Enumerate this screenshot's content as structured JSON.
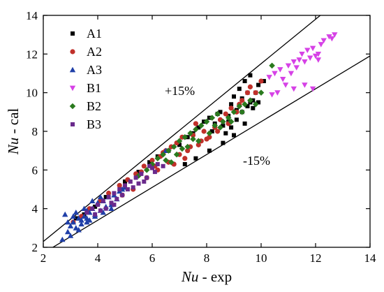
{
  "chart_data": {
    "type": "scatter",
    "title": "",
    "xlabel_italic": "Nu",
    "xlabel_rest": " - exp",
    "ylabel_italic": "Nu",
    "ylabel_rest": " - cal",
    "xlim": [
      2,
      14
    ],
    "ylim": [
      2,
      14
    ],
    "xticks": [
      2,
      4,
      6,
      8,
      10,
      12,
      14
    ],
    "yticks": [
      2,
      4,
      6,
      8,
      10,
      12,
      14
    ],
    "grid": false,
    "legend_position": "top-left",
    "reference_lines": [
      {
        "label": "+15%",
        "slope": 1.15
      },
      {
        "label": "-15%",
        "slope": 0.85
      }
    ],
    "series": [
      {
        "name": "A1",
        "marker": "square",
        "color": "#000000",
        "points": [
          [
            3.2,
            3.5
          ],
          [
            3.5,
            3.7
          ],
          [
            3.9,
            4.1
          ],
          [
            4.3,
            4.6
          ],
          [
            5.0,
            5.4
          ],
          [
            5.5,
            5.9
          ],
          [
            5.9,
            6.4
          ],
          [
            6.2,
            6.7
          ],
          [
            6.6,
            7.0
          ],
          [
            7.0,
            7.3
          ],
          [
            7.3,
            7.7
          ],
          [
            7.5,
            7.9
          ],
          [
            7.7,
            8.2
          ],
          [
            7.9,
            8.5
          ],
          [
            8.1,
            8.7
          ],
          [
            8.3,
            8.4
          ],
          [
            8.5,
            9.0
          ],
          [
            8.6,
            8.3
          ],
          [
            8.7,
            7.9
          ],
          [
            8.8,
            8.8
          ],
          [
            8.9,
            9.4
          ],
          [
            9.0,
            9.8
          ],
          [
            9.1,
            8.6
          ],
          [
            9.2,
            10.2
          ],
          [
            9.3,
            9.0
          ],
          [
            9.4,
            10.6
          ],
          [
            9.5,
            9.3
          ],
          [
            9.6,
            10.9
          ],
          [
            9.7,
            9.6
          ],
          [
            9.8,
            10.0
          ],
          [
            9.9,
            10.4
          ],
          [
            9.7,
            9.2
          ],
          [
            9.4,
            8.4
          ],
          [
            9.0,
            7.8
          ],
          [
            8.6,
            7.4
          ],
          [
            8.1,
            7.0
          ],
          [
            7.6,
            6.6
          ],
          [
            7.2,
            6.3
          ],
          [
            8.4,
            8.9
          ],
          [
            8.2,
            8.0
          ],
          [
            9.3,
            9.7
          ],
          [
            9.5,
            10.0
          ],
          [
            8.8,
            8.5
          ],
          [
            9.1,
            9.1
          ],
          [
            9.9,
            9.5
          ],
          [
            10.1,
            10.6
          ],
          [
            9.6,
            9.5
          ],
          [
            8.9,
            8.2
          ]
        ]
      },
      {
        "name": "A2",
        "marker": "circle",
        "color": "#c0302a",
        "points": [
          [
            3.1,
            3.3
          ],
          [
            3.4,
            3.6
          ],
          [
            3.7,
            4.0
          ],
          [
            4.1,
            4.4
          ],
          [
            4.4,
            4.8
          ],
          [
            4.8,
            5.2
          ],
          [
            5.1,
            5.5
          ],
          [
            5.4,
            5.8
          ],
          [
            5.7,
            6.2
          ],
          [
            6.0,
            6.5
          ],
          [
            6.3,
            6.7
          ],
          [
            6.5,
            7.0
          ],
          [
            6.7,
            7.2
          ],
          [
            6.9,
            7.4
          ],
          [
            7.1,
            7.7
          ],
          [
            7.3,
            7.0
          ],
          [
            7.5,
            7.8
          ],
          [
            7.7,
            7.3
          ],
          [
            7.9,
            8.0
          ],
          [
            8.1,
            7.7
          ],
          [
            8.3,
            8.2
          ],
          [
            8.5,
            8.6
          ],
          [
            8.7,
            8.9
          ],
          [
            8.9,
            9.2
          ],
          [
            9.1,
            9.0
          ],
          [
            9.3,
            9.6
          ],
          [
            9.5,
            10.0
          ],
          [
            9.6,
            10.3
          ],
          [
            9.8,
            10.0
          ],
          [
            10.0,
            10.6
          ],
          [
            7.0,
            6.8
          ],
          [
            6.6,
            6.4
          ],
          [
            6.2,
            6.0
          ],
          [
            5.8,
            5.6
          ],
          [
            5.3,
            5.0
          ],
          [
            4.9,
            4.7
          ],
          [
            7.4,
            7.2
          ],
          [
            8.0,
            7.6
          ],
          [
            7.6,
            8.4
          ],
          [
            7.2,
            6.6
          ],
          [
            6.8,
            6.3
          ],
          [
            8.4,
            8.0
          ],
          [
            8.8,
            8.4
          ],
          [
            7.8,
            7.5
          ],
          [
            6.4,
            6.9
          ],
          [
            6.1,
            6.2
          ],
          [
            5.6,
            5.9
          ],
          [
            9.2,
            9.4
          ]
        ]
      },
      {
        "name": "A3",
        "marker": "triangle-up",
        "color": "#1f3fa8",
        "points": [
          [
            2.7,
            2.4
          ],
          [
            2.8,
            3.7
          ],
          [
            2.9,
            2.8
          ],
          [
            3.0,
            3.1
          ],
          [
            3.1,
            3.3
          ],
          [
            3.2,
            3.0
          ],
          [
            3.3,
            3.5
          ],
          [
            3.4,
            3.2
          ],
          [
            3.5,
            3.6
          ],
          [
            3.6,
            3.9
          ],
          [
            3.7,
            3.4
          ],
          [
            3.8,
            4.0
          ],
          [
            3.9,
            3.7
          ],
          [
            4.0,
            4.3
          ],
          [
            4.1,
            3.9
          ],
          [
            4.2,
            4.4
          ],
          [
            4.3,
            4.1
          ],
          [
            4.4,
            4.6
          ],
          [
            4.5,
            4.2
          ],
          [
            4.6,
            4.7
          ],
          [
            4.8,
            4.9
          ],
          [
            5.0,
            5.1
          ],
          [
            3.3,
            2.9
          ],
          [
            3.6,
            3.3
          ],
          [
            3.9,
            3.6
          ],
          [
            4.2,
            3.8
          ],
          [
            4.5,
            4.0
          ],
          [
            3.2,
            3.8
          ],
          [
            3.5,
            4.0
          ],
          [
            3.8,
            4.4
          ],
          [
            4.1,
            4.6
          ],
          [
            2.9,
            3.3
          ],
          [
            3.0,
            2.6
          ],
          [
            3.4,
            3.4
          ],
          [
            3.7,
            3.8
          ],
          [
            6.5,
            7.0
          ],
          [
            4.7,
            4.5
          ],
          [
            4.9,
            5.0
          ],
          [
            3.1,
            3.6
          ],
          [
            3.6,
            3.5
          ]
        ]
      },
      {
        "name": "B1",
        "marker": "triangle-down",
        "color": "#d642e6",
        "points": [
          [
            10.3,
            10.8
          ],
          [
            10.5,
            11.0
          ],
          [
            10.7,
            11.2
          ],
          [
            10.8,
            10.7
          ],
          [
            10.9,
            10.4
          ],
          [
            11.0,
            11.4
          ],
          [
            11.1,
            11.0
          ],
          [
            11.2,
            11.6
          ],
          [
            11.3,
            11.3
          ],
          [
            11.4,
            11.7
          ],
          [
            11.5,
            12.0
          ],
          [
            11.6,
            11.6
          ],
          [
            11.7,
            12.2
          ],
          [
            11.8,
            11.8
          ],
          [
            11.9,
            12.3
          ],
          [
            12.0,
            11.9
          ],
          [
            12.1,
            12.0
          ],
          [
            12.2,
            12.5
          ],
          [
            12.3,
            12.7
          ],
          [
            12.5,
            12.9
          ],
          [
            12.7,
            13.0
          ],
          [
            12.6,
            12.8
          ],
          [
            11.2,
            10.2
          ],
          [
            11.6,
            10.4
          ],
          [
            11.9,
            10.2
          ],
          [
            12.1,
            11.7
          ],
          [
            10.6,
            10.0
          ],
          [
            10.4,
            9.9
          ]
        ]
      },
      {
        "name": "B2",
        "marker": "diamond",
        "color": "#2a7a1e",
        "points": [
          [
            5.5,
            5.7
          ],
          [
            5.8,
            6.0
          ],
          [
            6.0,
            6.3
          ],
          [
            6.2,
            6.6
          ],
          [
            6.4,
            6.8
          ],
          [
            6.6,
            7.0
          ],
          [
            6.8,
            7.2
          ],
          [
            7.0,
            7.5
          ],
          [
            7.2,
            7.7
          ],
          [
            7.4,
            7.9
          ],
          [
            7.6,
            8.1
          ],
          [
            7.8,
            8.3
          ],
          [
            8.0,
            8.5
          ],
          [
            8.2,
            8.7
          ],
          [
            8.4,
            8.9
          ],
          [
            8.6,
            8.5
          ],
          [
            8.8,
            8.7
          ],
          [
            9.0,
            9.0
          ],
          [
            9.2,
            9.3
          ],
          [
            9.4,
            9.4
          ],
          [
            9.6,
            9.6
          ],
          [
            9.8,
            9.4
          ],
          [
            10.0,
            10.0
          ],
          [
            10.4,
            11.4
          ],
          [
            6.5,
            6.5
          ],
          [
            6.9,
            6.8
          ],
          [
            7.3,
            7.2
          ],
          [
            7.7,
            7.5
          ],
          [
            8.1,
            7.9
          ],
          [
            8.5,
            8.2
          ],
          [
            8.9,
            8.5
          ],
          [
            9.3,
            9.0
          ],
          [
            7.5,
            7.6
          ],
          [
            7.1,
            7.1
          ],
          [
            6.7,
            6.4
          ],
          [
            8.3,
            8.3
          ]
        ]
      },
      {
        "name": "B3",
        "marker": "square",
        "color": "#6a2a8c",
        "points": [
          [
            3.6,
            3.8
          ],
          [
            3.8,
            4.0
          ],
          [
            4.0,
            4.2
          ],
          [
            4.2,
            4.4
          ],
          [
            4.4,
            4.6
          ],
          [
            4.6,
            4.8
          ],
          [
            4.8,
            5.0
          ],
          [
            5.0,
            5.2
          ],
          [
            5.2,
            5.4
          ],
          [
            5.4,
            5.6
          ],
          [
            5.6,
            5.8
          ],
          [
            5.8,
            5.6
          ],
          [
            6.0,
            6.1
          ],
          [
            6.2,
            6.3
          ],
          [
            4.5,
            4.3
          ],
          [
            4.7,
            4.5
          ],
          [
            4.9,
            4.7
          ],
          [
            5.1,
            5.0
          ],
          [
            5.3,
            5.1
          ],
          [
            5.5,
            5.3
          ],
          [
            4.3,
            4.0
          ],
          [
            4.1,
            3.9
          ],
          [
            3.9,
            3.7
          ],
          [
            4.6,
            4.2
          ],
          [
            5.7,
            5.4
          ],
          [
            6.1,
            5.9
          ],
          [
            6.4,
            6.2
          ],
          [
            5.9,
            6.2
          ]
        ]
      }
    ]
  }
}
